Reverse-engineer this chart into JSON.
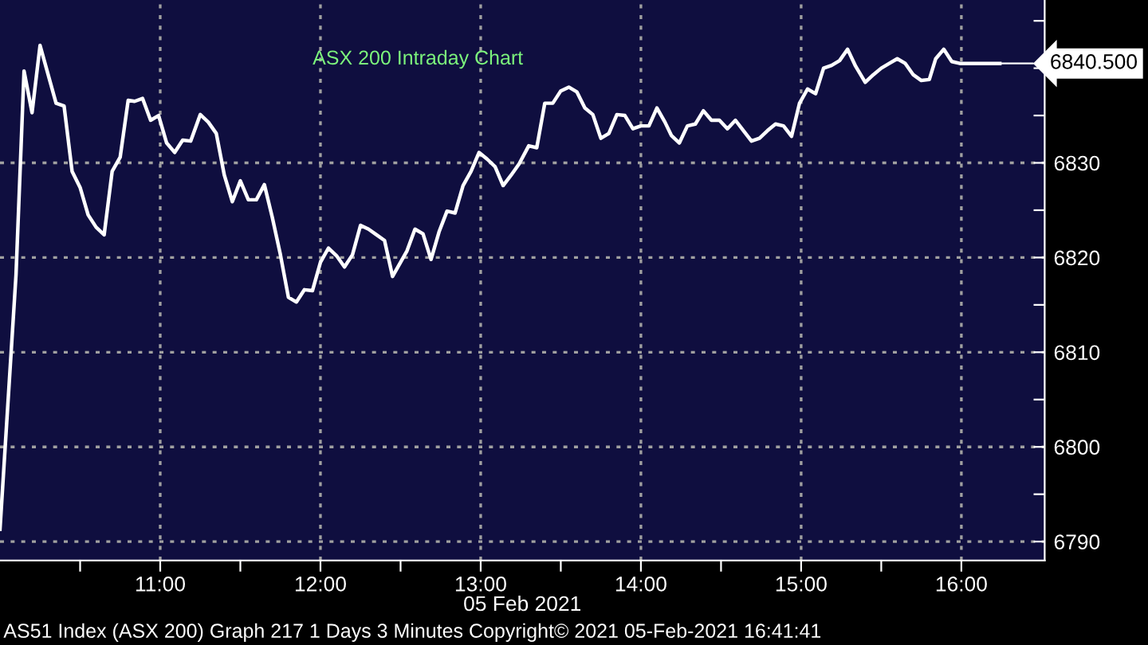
{
  "chart_data": {
    "type": "line",
    "title": "ASX 200 Intraday Chart",
    "xlabel": "05 Feb 2021",
    "x": [
      10.0,
      10.1,
      10.15,
      10.2,
      10.25,
      10.35,
      10.4,
      10.45,
      10.5,
      10.55,
      10.6,
      10.65,
      10.7,
      10.75,
      10.8,
      10.84,
      10.89,
      10.94,
      10.99,
      11.04,
      11.09,
      11.14,
      11.19,
      11.25,
      11.3,
      11.35,
      11.4,
      11.45,
      11.5,
      11.55,
      11.6,
      11.65,
      11.7,
      11.75,
      11.8,
      11.85,
      11.9,
      11.95,
      12.0,
      12.05,
      12.1,
      12.15,
      12.2,
      12.25,
      12.3,
      12.35,
      12.4,
      12.45,
      12.5,
      12.54,
      12.59,
      12.64,
      12.69,
      12.74,
      12.79,
      12.84,
      12.89,
      12.94,
      12.99,
      13.04,
      13.09,
      13.14,
      13.19,
      13.24,
      13.3,
      13.35,
      13.4,
      13.45,
      13.5,
      13.55,
      13.6,
      13.65,
      13.7,
      13.75,
      13.8,
      13.85,
      13.9,
      13.95,
      14.0,
      14.05,
      14.1,
      14.15,
      14.19,
      14.24,
      14.29,
      14.34,
      14.39,
      14.44,
      14.49,
      14.54,
      14.59,
      14.64,
      14.69,
      14.74,
      14.79,
      14.84,
      14.89,
      14.94,
      14.99,
      15.04,
      15.09,
      15.14,
      15.19,
      15.24,
      15.29,
      15.34,
      15.4,
      15.45,
      15.5,
      15.55,
      15.6,
      15.65,
      15.7,
      15.75,
      15.8,
      15.84,
      15.89,
      15.94,
      15.99,
      16.24
    ],
    "series": [
      {
        "color": "#ffffff",
        "values": [
          6791.3,
          6818.2,
          6839.7,
          6835.3,
          6842.4,
          6836.3,
          6836.0,
          6829.1,
          6827.4,
          6824.5,
          6823.2,
          6822.4,
          6829.1,
          6830.6,
          6836.6,
          6836.5,
          6836.8,
          6834.5,
          6835.0,
          6832.1,
          6831.1,
          6832.4,
          6832.3,
          6835.1,
          6834.3,
          6833.1,
          6828.7,
          6825.9,
          6828.1,
          6826.1,
          6826.1,
          6827.7,
          6824.2,
          6820.3,
          6815.8,
          6815.3,
          6816.6,
          6816.5,
          6819.5,
          6821.0,
          6820.2,
          6819.0,
          6820.3,
          6823.4,
          6823.0,
          6822.4,
          6821.8,
          6818.0,
          6819.5,
          6820.7,
          6823.0,
          6822.5,
          6819.8,
          6822.7,
          6824.9,
          6824.7,
          6827.6,
          6829.1,
          6831.1,
          6830.4,
          6829.6,
          6827.6,
          6828.7,
          6829.9,
          6831.8,
          6831.6,
          6836.3,
          6836.3,
          6837.6,
          6838.0,
          6837.5,
          6835.8,
          6835.1,
          6832.6,
          6833.1,
          6835.1,
          6835.0,
          6833.6,
          6833.9,
          6833.9,
          6835.8,
          6834.3,
          6832.9,
          6832.1,
          6833.9,
          6834.1,
          6835.5,
          6834.5,
          6834.5,
          6833.6,
          6834.5,
          6833.4,
          6832.3,
          6832.6,
          6833.4,
          6834.1,
          6833.9,
          6832.8,
          6836.3,
          6837.8,
          6837.3,
          6840.0,
          6840.3,
          6840.8,
          6842.0,
          6840.2,
          6838.5,
          6839.3,
          6840.0,
          6840.5,
          6841.0,
          6840.5,
          6839.3,
          6838.7,
          6838.8,
          6841.0,
          6842.0,
          6840.7,
          6840.5,
          6840.5
        ]
      }
    ],
    "xlim": [
      10.0,
      16.52
    ],
    "ylim": [
      6788.0,
      6847.2
    ],
    "xticks": [
      {
        "value": 10.5,
        "label": null
      },
      {
        "value": 11,
        "label": "11:00"
      },
      {
        "value": 11.5,
        "label": null
      },
      {
        "value": 12,
        "label": "12:00"
      },
      {
        "value": 12.5,
        "label": null
      },
      {
        "value": 13,
        "label": "13:00"
      },
      {
        "value": 13.5,
        "label": null
      },
      {
        "value": 14,
        "label": "14:00"
      },
      {
        "value": 14.5,
        "label": null
      },
      {
        "value": 15,
        "label": "15:00"
      },
      {
        "value": 15.5,
        "label": null
      },
      {
        "value": 16,
        "label": "16:00"
      }
    ],
    "yticks": [
      6790,
      {
        "value": 6795,
        "label": null
      },
      6800,
      {
        "value": 6805,
        "label": null
      },
      6810,
      {
        "value": 6815,
        "label": null
      },
      6820,
      {
        "value": 6825,
        "label": null
      },
      6830,
      {
        "value": 6835,
        "label": null
      },
      {
        "value": 6840,
        "label": null
      },
      {
        "value": 6845,
        "label": null
      }
    ],
    "grid": true,
    "line_style": "solid",
    "marker": "none",
    "annotations": [
      {
        "text": "6840.500",
        "x": 16.24,
        "y": 6840.5
      },
      "AS51 Index (ASX 200) Graph 217 1 Days 3 Minutes Copyright© 2021 05-Feb-2021 16:41:41"
    ]
  }
}
